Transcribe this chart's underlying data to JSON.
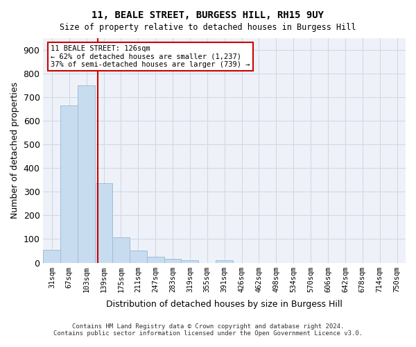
{
  "title_line1": "11, BEALE STREET, BURGESS HILL, RH15 9UY",
  "title_line2": "Size of property relative to detached houses in Burgess Hill",
  "xlabel": "Distribution of detached houses by size in Burgess Hill",
  "ylabel": "Number of detached properties",
  "bar_labels": [
    "31sqm",
    "67sqm",
    "103sqm",
    "139sqm",
    "175sqm",
    "211sqm",
    "247sqm",
    "283sqm",
    "319sqm",
    "355sqm",
    "391sqm",
    "426sqm",
    "462sqm",
    "498sqm",
    "534sqm",
    "570sqm",
    "606sqm",
    "642sqm",
    "678sqm",
    "714sqm",
    "750sqm"
  ],
  "bar_values": [
    55,
    665,
    750,
    335,
    108,
    52,
    25,
    15,
    10,
    0,
    10,
    0,
    0,
    0,
    0,
    0,
    0,
    0,
    0,
    0,
    0
  ],
  "bar_color": "#c7ddef",
  "bar_edge_color": "#a0bcd8",
  "grid_color": "#d0d8e8",
  "background_color": "#eef2f8",
  "property_line_x": 126,
  "property_line_label": "11 BEALE STREET: 126sqm",
  "annotation_line2": "← 62% of detached houses are smaller (1,237)",
  "annotation_line3": "37% of semi-detached houses are larger (739) →",
  "annotation_box_color": "#ffffff",
  "annotation_box_edge_color": "#cc0000",
  "vline_color": "#cc0000",
  "ylim": [
    0,
    950
  ],
  "yticks": [
    0,
    100,
    200,
    300,
    400,
    500,
    600,
    700,
    800,
    900
  ],
  "footnote_line1": "Contains HM Land Registry data © Crown copyright and database right 2024.",
  "footnote_line2": "Contains public sector information licensed under the Open Government Licence v3.0."
}
